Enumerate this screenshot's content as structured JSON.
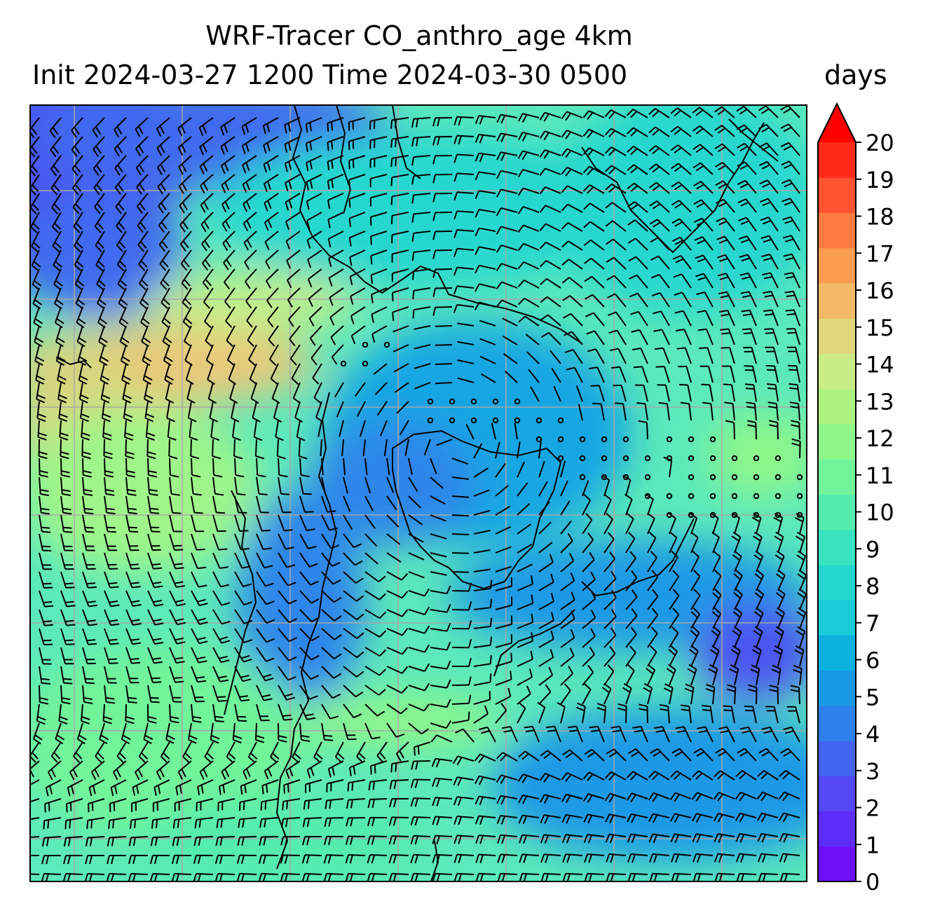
{
  "title": {
    "line1": "WRF-Tracer CO_anthro_age 4km",
    "line2": "Init 2024-03-27 1200 Time 2024-03-30 0500"
  },
  "colorbar": {
    "units": "days",
    "ticks": [
      "0",
      "1",
      "2",
      "3",
      "4",
      "5",
      "6",
      "7",
      "8",
      "9",
      "10",
      "11",
      "12",
      "13",
      "14",
      "15",
      "16",
      "17",
      "18",
      "19",
      "20"
    ],
    "colors": [
      "#6e11fb",
      "#5e2cf8",
      "#5348f3",
      "#4364f0",
      "#2e80ec",
      "#1a99e6",
      "#0db1e0",
      "#1acbd9",
      "#25d7cf",
      "#3ae3c0",
      "#55ecae",
      "#72f49a",
      "#8ff789",
      "#aef37f",
      "#c9ec84",
      "#e1d67c",
      "#f2ba66",
      "#fa9c52",
      "#ff7a40",
      "#ff5430",
      "#ff2a1a"
    ],
    "extend": "max",
    "extend_color": "#ff0000"
  },
  "map": {
    "background_color": "#5ce9bb",
    "gridlines": true,
    "gridline_color": "#a8a8a8",
    "barbs": "black",
    "coastlines": "black"
  }
}
